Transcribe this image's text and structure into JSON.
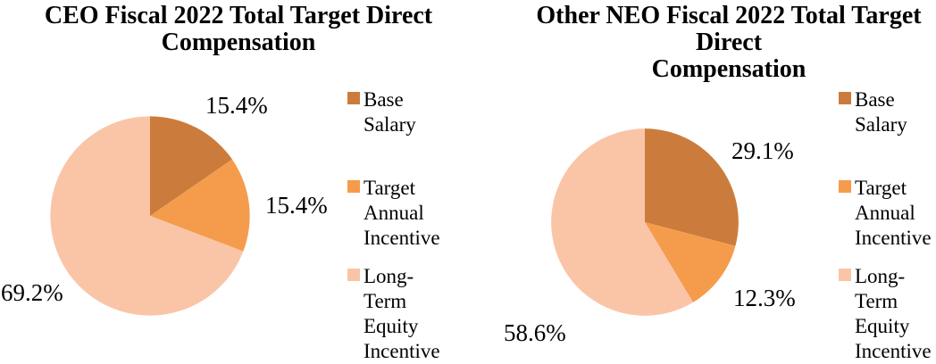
{
  "figure": {
    "background": "#FFFFFF",
    "text_color": "#000000"
  },
  "legend": {
    "items": [
      {
        "label": "Base Salary",
        "label_display": "Base\nSalary",
        "color": "#CB7C3C"
      },
      {
        "label": "Target Annual Incentive",
        "label_display": "Target\nAnnual\nIncentive",
        "color": "#F59C4C"
      },
      {
        "label": "Long-Term Equity Incentive",
        "label_display": "Long-\nTerm\nEquity\nIncentive",
        "color": "#FAC5A7"
      }
    ]
  },
  "chart_data": [
    {
      "type": "pie",
      "title": "CEO Fiscal 2022 Total Target Direct Compensation",
      "title_display": "CEO Fiscal 2022 Total Target Direct\nCompensation",
      "labels": [
        "Base Salary",
        "Target Annual Incentive",
        "Long-Term Equity Incentive"
      ],
      "values": [
        15.4,
        15.4,
        69.2
      ],
      "data_labels": [
        "15.4%",
        "15.4%",
        "69.2%"
      ],
      "colors": [
        "#CB7C3C",
        "#F59C4C",
        "#FAC5A7"
      ],
      "start_angle_deg": 0,
      "direction": "clockwise",
      "legend_position": "right",
      "legend_entries": [
        "Base Salary",
        "Target Annual Incentive",
        "Long-Term Equity Incentive"
      ]
    },
    {
      "type": "pie",
      "title": "Other NEO Fiscal 2022 Total Target Direct Compensation",
      "title_display": "Other NEO Fiscal 2022 Total Target\nDirect\nCompensation",
      "labels": [
        "Base Salary",
        "Target Annual Incentive",
        "Long-Term Equity Incentive"
      ],
      "values": [
        29.1,
        12.3,
        58.6
      ],
      "data_labels": [
        "29.1%",
        "12.3%",
        "58.6%"
      ],
      "colors": [
        "#CB7C3C",
        "#F59C4C",
        "#FAC5A7"
      ],
      "start_angle_deg": 0,
      "direction": "clockwise",
      "legend_position": "right",
      "legend_entries": [
        "Base Salary",
        "Target Annual Incentive",
        "Long-Term Equity Incentive"
      ]
    }
  ]
}
